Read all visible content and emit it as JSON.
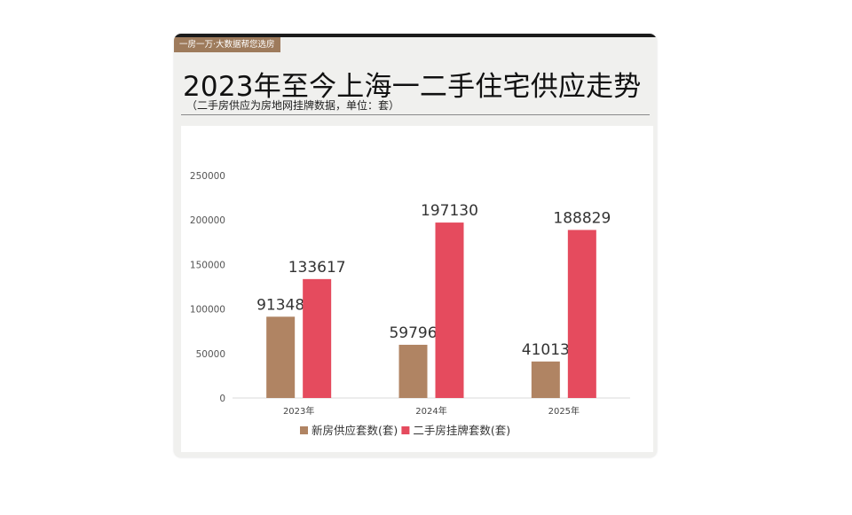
{
  "header": {
    "tag": "一房一万·大数据帮您选房",
    "title": "2023年至今上海一二手住宅供应走势",
    "subtitle": "（二手房供应为房地网挂牌数据，单位：套）"
  },
  "colors": {
    "new": "#b08463",
    "second": "#e54b5e",
    "tag_bg": "#9e7b5c"
  },
  "chart_data": {
    "type": "bar",
    "title": "2023年至今上海一二手住宅供应走势",
    "categories": [
      "2023年",
      "2024年",
      "2025年"
    ],
    "series": [
      {
        "name": "新房供应套数(套)",
        "values": [
          91348,
          59796,
          41013
        ]
      },
      {
        "name": "二手房挂牌套数(套)",
        "values": [
          133617,
          197130,
          188829
        ]
      }
    ],
    "yticks": [
      0,
      50000,
      100000,
      150000,
      200000,
      250000
    ],
    "ylim": [
      0,
      250000
    ],
    "grid": false,
    "legend": "bottom"
  }
}
